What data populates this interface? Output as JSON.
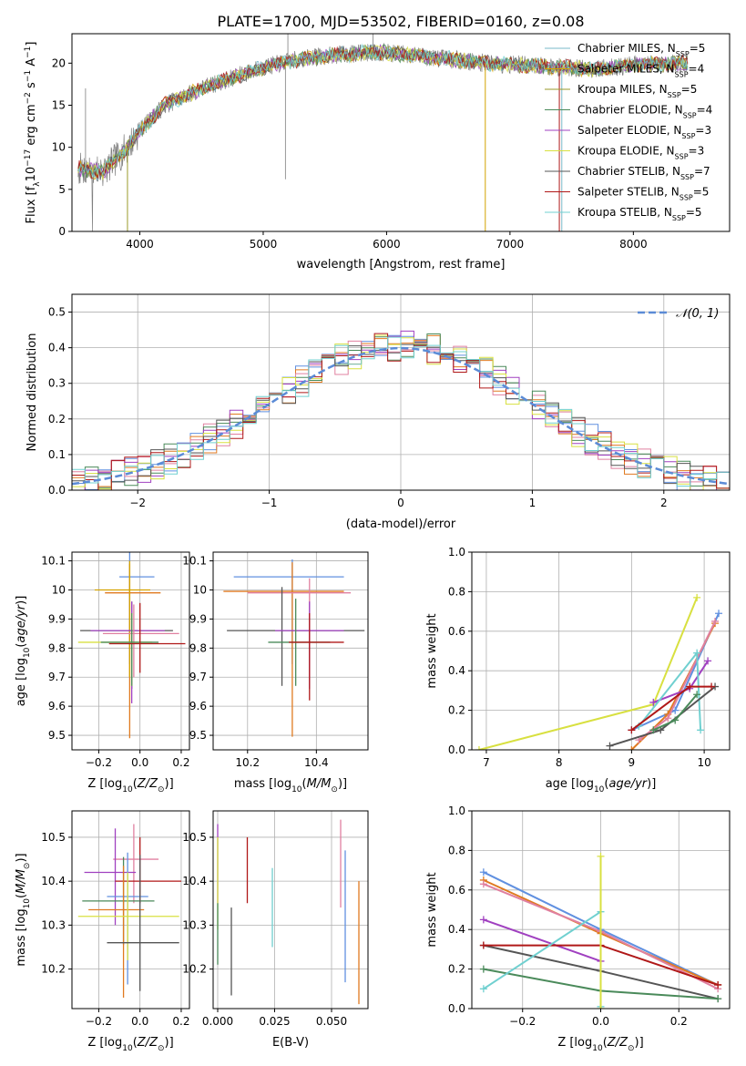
{
  "title": "PLATE=1700, MJD=53502, FIBERID=0160, z=0.08",
  "colors": [
    "#7ab8c8",
    "#d4a300",
    "#9a9a2a",
    "#4a8a5a",
    "#a040c0",
    "#d8e040",
    "#555555",
    "#b01818",
    "#70d0d0",
    "#6090e0",
    "#e07a20",
    "#e080a0"
  ],
  "chart_data": [
    {
      "id": "spectrum",
      "type": "line",
      "xlabel": "wavelength [Angstrom, rest frame]",
      "ylabel_main": "Flux [f",
      "ylabel_sub": "λ",
      "ylabel_rest": "10",
      "ylabel_sup": "−17",
      "ylabel_tail": " erg cm",
      "ylabel_sup2": "−2",
      "ylabel_tail2": " s",
      "ylabel_sup3": "−1",
      "ylabel_tail3": " A",
      "ylabel_sup4": "−1",
      "ylabel_end": "]",
      "xlim": [
        3450,
        8780
      ],
      "ylim": [
        0,
        23.5
      ],
      "xticks": [
        4000,
        5000,
        6000,
        7000,
        8000
      ],
      "yticks": [
        0,
        5,
        10,
        15,
        20
      ],
      "continuum": [
        [
          3500,
          7.5
        ],
        [
          3700,
          7
        ],
        [
          3800,
          8.5
        ],
        [
          3900,
          10
        ],
        [
          4000,
          12
        ],
        [
          4200,
          15
        ],
        [
          4500,
          17
        ],
        [
          4800,
          18.5
        ],
        [
          5000,
          19.5
        ],
        [
          5300,
          20.5
        ],
        [
          5600,
          21
        ],
        [
          5900,
          21.3
        ],
        [
          6200,
          21
        ],
        [
          6500,
          20.5
        ],
        [
          6800,
          20
        ],
        [
          7100,
          19.8
        ],
        [
          7400,
          19.5
        ],
        [
          7700,
          19.3
        ],
        [
          8000,
          19.8
        ],
        [
          8400,
          20
        ]
      ],
      "legend": [
        {
          "label": "Chabrier MILES, N",
          "sub": "SSP",
          "val": "=5"
        },
        {
          "label": "Salpeter MILES, N",
          "sub": "SSP",
          "val": "=4"
        },
        {
          "label": "Kroupa MILES, N",
          "sub": "SSP",
          "val": "=5"
        },
        {
          "label": "Chabrier ELODIE, N",
          "sub": "SSP",
          "val": "=4"
        },
        {
          "label": "Salpeter ELODIE, N",
          "sub": "SSP",
          "val": "=3"
        },
        {
          "label": "Kroupa ELODIE, N",
          "sub": "SSP",
          "val": "=3"
        },
        {
          "label": "Chabrier STELIB, N",
          "sub": "SSP",
          "val": "=7"
        },
        {
          "label": "Salpeter STELIB, N",
          "sub": "SSP",
          "val": "=5"
        },
        {
          "label": "Kroupa STELIB, N",
          "sub": "SSP",
          "val": "=5"
        }
      ]
    },
    {
      "id": "residuals",
      "type": "histogram",
      "xlabel": "(data-model)/error",
      "ylabel": "Normed distribution",
      "xlim": [
        -2.5,
        2.5
      ],
      "ylim": [
        0,
        0.55
      ],
      "xticks": [
        -2,
        -1,
        0,
        1,
        2
      ],
      "xticklabels": [
        "−2",
        "−1",
        "0",
        "1",
        "2"
      ],
      "yticks": [
        0,
        0.1,
        0.2,
        0.3,
        0.4,
        0.5
      ],
      "yticklabels": [
        "0.0",
        "0.1",
        "0.2",
        "0.3",
        "0.4",
        "0.5"
      ],
      "bin_width": 0.1,
      "legend": "𝒩(0, 1)"
    },
    {
      "id": "age_z",
      "type": "errorbar",
      "xlabel": "Z [log",
      "xlabel_sub": "10",
      "xlabel_tail": "(Z/Z",
      "xlabel_sub2": "⊙",
      "xlabel_end": ")]",
      "ylabel": "age  [log10(age/yr)]",
      "xlim": [
        -0.33,
        0.24
      ],
      "ylim": [
        9.45,
        10.13
      ],
      "xticks": [
        -0.2,
        0.0,
        0.2
      ],
      "xticklabels": [
        "−0.2",
        "0.0",
        "0.2"
      ],
      "yticks": [
        9.5,
        9.6,
        9.7,
        9.8,
        9.9,
        10.0,
        10.1
      ],
      "points": [
        {
          "x": -0.05,
          "y": 10.045,
          "xerr": [
            0.05,
            0.12
          ],
          "yerr": [
            0.3,
            0.1
          ],
          "c": 9
        },
        {
          "x": -0.05,
          "y": 9.99,
          "xerr": [
            0.12,
            0.15
          ],
          "yerr": [
            0.5,
            0.1
          ],
          "c": 10
        },
        {
          "x": -0.05,
          "y": 10.0,
          "xerr": [
            0.17,
            0.1
          ],
          "yerr": [
            0.3,
            0.1
          ],
          "c": 1
        },
        {
          "x": -0.04,
          "y": 9.86,
          "xerr": [
            0.25,
            0.2
          ],
          "yerr": [
            0.2,
            0.1
          ],
          "c": 6
        },
        {
          "x": -0.04,
          "y": 9.86,
          "xerr": [
            0.2,
            0.16
          ],
          "yerr": [
            0.25,
            0.1
          ],
          "c": 4
        },
        {
          "x": -0.03,
          "y": 9.85,
          "xerr": [
            0.15,
            0.22
          ],
          "yerr": [
            0.15,
            0.1
          ],
          "c": 11
        },
        {
          "x": -0.04,
          "y": 9.82,
          "xerr": [
            0.26,
            0.1
          ],
          "yerr": [
            0.15,
            0.1
          ],
          "c": 5
        },
        {
          "x": -0.04,
          "y": 9.82,
          "xerr": [
            0.15,
            0.13
          ],
          "yerr": [
            0.15,
            0.1
          ],
          "c": 3
        },
        {
          "x": 0.0,
          "y": 9.815,
          "xerr": [
            0.15,
            0.22
          ],
          "yerr": [
            0.1,
            0.14
          ],
          "c": 7
        }
      ]
    },
    {
      "id": "age_mass",
      "type": "errorbar",
      "xlabel": "mass [log",
      "xlabel_sub": "10",
      "xlabel_tail": "(M/M",
      "xlabel_sub2": "⊙",
      "xlabel_end": ")]",
      "xlim": [
        10.1,
        10.55
      ],
      "ylim": [
        9.45,
        10.13
      ],
      "xticks": [
        10.2,
        10.4
      ],
      "xticklabels": [
        "10.2",
        "10.4"
      ],
      "yticks": [
        9.5,
        9.6,
        9.7,
        9.8,
        9.9,
        10.0,
        10.1
      ],
      "points": [
        {
          "x": 10.33,
          "y": 10.045,
          "xerr": [
            0.17,
            0.15
          ],
          "yerr": [
            0.3,
            0.06
          ],
          "c": 9
        },
        {
          "x": 10.33,
          "y": 9.995,
          "xerr": [
            0.2,
            0.15
          ],
          "yerr": [
            0.5,
            0.1
          ],
          "c": 10
        },
        {
          "x": 10.38,
          "y": 9.99,
          "xerr": [
            0.18,
            0.12
          ],
          "yerr": [
            0.3,
            0.05
          ],
          "c": 11
        },
        {
          "x": 10.3,
          "y": 9.86,
          "xerr": [
            0.16,
            0.24
          ],
          "yerr": [
            0.19,
            0.15
          ],
          "c": 6
        },
        {
          "x": 10.38,
          "y": 9.86,
          "xerr": [
            0.1,
            0.1
          ],
          "yerr": [
            0.2,
            0.1
          ],
          "c": 4
        },
        {
          "x": 10.34,
          "y": 9.82,
          "xerr": [
            0.08,
            0.1
          ],
          "yerr": [
            0.15,
            0.15
          ],
          "c": 3
        },
        {
          "x": 10.38,
          "y": 9.82,
          "xerr": [
            0.06,
            0.1
          ],
          "yerr": [
            0.2,
            0.1
          ],
          "c": 7
        }
      ]
    },
    {
      "id": "mw_age",
      "type": "line",
      "xlabel": "age  [log10(age/yr)]",
      "ylabel": "mass weight",
      "xlim": [
        6.8,
        10.35
      ],
      "ylim": [
        0,
        1
      ],
      "xticks": [
        7,
        8,
        9,
        10
      ],
      "xticklabels": [
        "7",
        "8",
        "9",
        "10"
      ],
      "yticks": [
        0,
        0.2,
        0.4,
        0.6,
        0.8,
        1.0
      ],
      "yticklabels": [
        "0.0",
        "0.2",
        "0.4",
        "0.6",
        "0.8",
        "1.0"
      ],
      "series": [
        {
          "c": 5,
          "x": [
            6.9,
            9.3,
            9.9
          ],
          "y": [
            0.0,
            0.23,
            0.77
          ]
        },
        {
          "c": 9,
          "x": [
            9.0,
            9.6,
            10.2
          ],
          "y": [
            0.1,
            0.2,
            0.69
          ]
        },
        {
          "c": 10,
          "x": [
            9.0,
            9.5,
            10.15
          ],
          "y": [
            0.0,
            0.18,
            0.64
          ]
        },
        {
          "c": 11,
          "x": [
            9.1,
            9.5,
            10.15
          ],
          "y": [
            0.05,
            0.16,
            0.65
          ]
        },
        {
          "c": 4,
          "x": [
            9.3,
            9.8,
            10.05
          ],
          "y": [
            0.24,
            0.31,
            0.45
          ]
        },
        {
          "c": 8,
          "x": [
            9.1,
            9.9,
            9.95
          ],
          "y": [
            0.12,
            0.49,
            0.1
          ]
        },
        {
          "c": 6,
          "x": [
            8.7,
            9.4,
            10.15
          ],
          "y": [
            0.02,
            0.1,
            0.32
          ]
        },
        {
          "c": 7,
          "x": [
            9.0,
            9.8,
            10.1
          ],
          "y": [
            0.1,
            0.32,
            0.32
          ]
        },
        {
          "c": 3,
          "x": [
            9.3,
            9.6,
            9.9
          ],
          "y": [
            0.1,
            0.15,
            0.28
          ]
        }
      ]
    },
    {
      "id": "mass_z",
      "type": "errorbar",
      "xlabel": "Z [log",
      "xlabel_sub": "10",
      "xlabel_tail": "(Z/Z",
      "xlabel_sub2": "⊙",
      "xlabel_end": ")]",
      "ylabel": "mass [log10(M/M⊙)]",
      "xlim": [
        -0.33,
        0.24
      ],
      "ylim": [
        10.11,
        10.56
      ],
      "xticks": [
        -0.2,
        0.0,
        0.2
      ],
      "xticklabels": [
        "−0.2",
        "0.0",
        "0.2"
      ],
      "yticks": [
        10.2,
        10.3,
        10.4,
        10.5
      ],
      "points": [
        {
          "x": -0.03,
          "y": 10.45,
          "xerr": [
            0.1,
            0.12
          ],
          "yerr": [
            0.1,
            0.08
          ],
          "c": 11
        },
        {
          "x": -0.12,
          "y": 10.42,
          "xerr": [
            0.15,
            0.1
          ],
          "yerr": [
            0.12,
            0.1
          ],
          "c": 4
        },
        {
          "x": 0.0,
          "y": 10.4,
          "xerr": [
            0.12,
            0.2
          ],
          "yerr": [
            0.05,
            0.1
          ],
          "c": 7
        },
        {
          "x": -0.06,
          "y": 10.365,
          "xerr": [
            0.1,
            0.1
          ],
          "yerr": [
            0.2,
            0.1
          ],
          "c": 9
        },
        {
          "x": -0.08,
          "y": 10.355,
          "xerr": [
            0.2,
            0.15
          ],
          "yerr": [
            0.1,
            0.1
          ],
          "c": 3
        },
        {
          "x": -0.08,
          "y": 10.335,
          "xerr": [
            0.17,
            0.1
          ],
          "yerr": [
            0.2,
            0.1
          ],
          "c": 10
        },
        {
          "x": -0.06,
          "y": 10.32,
          "xerr": [
            0.24,
            0.25
          ],
          "yerr": [
            0.1,
            0.1
          ],
          "c": 5
        },
        {
          "x": 0.0,
          "y": 10.26,
          "xerr": [
            0.16,
            0.19
          ],
          "yerr": [
            0.11,
            0.2
          ],
          "c": 6
        }
      ]
    },
    {
      "id": "mass_ebv",
      "type": "errorbar",
      "xlabel": "E(B-V)",
      "xlim": [
        -0.002,
        0.066
      ],
      "ylim": [
        10.11,
        10.56
      ],
      "xticks": [
        0.0,
        0.025,
        0.05
      ],
      "xticklabels": [
        "0.000",
        "0.025",
        "0.050"
      ],
      "yticks": [
        10.2,
        10.3,
        10.4,
        10.5
      ],
      "points": [
        {
          "x": 0.0,
          "y": 10.45,
          "c": 4,
          "yerr": [
            0.1,
            0.08
          ]
        },
        {
          "x": 0.0,
          "y": 10.36,
          "c": 5,
          "yerr": [
            0.07,
            0.14
          ]
        },
        {
          "x": 0.0,
          "y": 10.28,
          "c": 3,
          "yerr": [
            0.07,
            0.07
          ]
        },
        {
          "x": 0.006,
          "y": 10.24,
          "c": 6,
          "yerr": [
            0.1,
            0.1
          ]
        },
        {
          "x": 0.013,
          "y": 10.43,
          "c": 7,
          "yerr": [
            0.08,
            0.07
          ]
        },
        {
          "x": 0.024,
          "y": 10.34,
          "c": 8,
          "yerr": [
            0.09,
            0.09
          ]
        },
        {
          "x": 0.054,
          "y": 10.44,
          "c": 11,
          "yerr": [
            0.1,
            0.1
          ]
        },
        {
          "x": 0.056,
          "y": 10.32,
          "c": 9,
          "yerr": [
            0.15,
            0.15
          ]
        },
        {
          "x": 0.062,
          "y": 10.26,
          "c": 10,
          "yerr": [
            0.14,
            0.14
          ]
        }
      ]
    },
    {
      "id": "mw_z",
      "type": "line",
      "xlabel": "Z [log",
      "xlabel_sub": "10",
      "xlabel_tail": "(Z/Z",
      "xlabel_sub2": "⊙",
      "xlabel_end": ")]",
      "ylabel": "mass weight",
      "xlim": [
        -0.33,
        0.33
      ],
      "ylim": [
        0,
        1
      ],
      "xticks": [
        -0.2,
        0.0,
        0.2
      ],
      "xticklabels": [
        "−0.2",
        "0.0",
        "0.2"
      ],
      "yticks": [
        0,
        0.2,
        0.4,
        0.6,
        0.8,
        1.0
      ],
      "yticklabels": [
        "0.0",
        "0.2",
        "0.4",
        "0.6",
        "0.8",
        "1.0"
      ],
      "series": [
        {
          "c": 9,
          "x": [
            -0.3,
            0.0,
            0.3
          ],
          "y": [
            0.69,
            0.4,
            0.12
          ]
        },
        {
          "c": 10,
          "x": [
            -0.3,
            0.0,
            0.3
          ],
          "y": [
            0.65,
            0.38,
            0.12
          ]
        },
        {
          "c": 11,
          "x": [
            -0.3,
            0.0,
            0.3
          ],
          "y": [
            0.63,
            0.39,
            0.1
          ]
        },
        {
          "c": 4,
          "x": [
            -0.3,
            0.0
          ],
          "y": [
            0.45,
            0.24
          ]
        },
        {
          "c": 6,
          "x": [
            -0.3,
            0.0,
            0.3
          ],
          "y": [
            0.32,
            0.19,
            0.05
          ]
        },
        {
          "c": 7,
          "x": [
            -0.3,
            0.0,
            0.3
          ],
          "y": [
            0.32,
            0.32,
            0.12
          ]
        },
        {
          "c": 3,
          "x": [
            -0.3,
            0.0,
            0.3
          ],
          "y": [
            0.2,
            0.09,
            0.05
          ]
        },
        {
          "c": 8,
          "x": [
            -0.3,
            0.0,
            0.0
          ],
          "y": [
            0.1,
            0.49,
            0.01
          ]
        },
        {
          "c": 5,
          "x": [
            0.0,
            0.0
          ],
          "y": [
            0.0,
            0.77
          ]
        }
      ]
    }
  ]
}
